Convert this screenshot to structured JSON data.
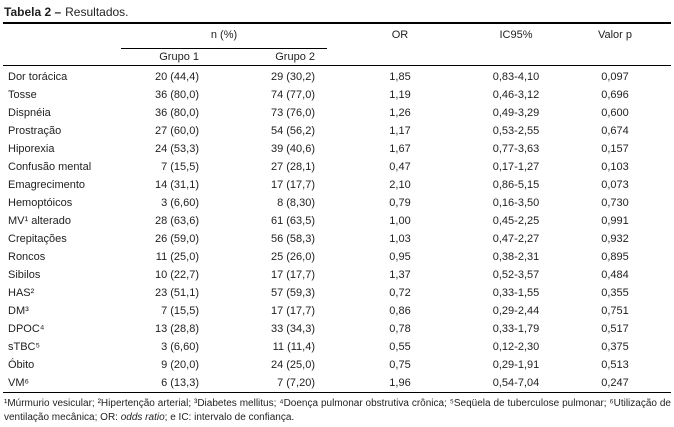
{
  "colors": {
    "background": "#ffffff",
    "text": "#1f1f1f",
    "rule": "#000000"
  },
  "title": {
    "bold": "Tabela 2 –",
    "rest": "Resultados."
  },
  "table": {
    "header": {
      "n_pct": "n (%)",
      "grupo1": "Grupo 1",
      "grupo2": "Grupo 2",
      "or": "OR",
      "ic95": "IC95%",
      "valor_p": "Valor p"
    },
    "rows": [
      {
        "label": "Dor torácica",
        "g1": "20 (44,4)",
        "g2": "29 (30,2)",
        "or": "1,85",
        "ic": "0,83-4,10",
        "p": "0,097"
      },
      {
        "label": "Tosse",
        "g1": "36 (80,0)",
        "g2": "74 (77,0)",
        "or": "1,19",
        "ic": "0,46-3,12",
        "p": "0,696"
      },
      {
        "label": "Dispnéia",
        "g1": "36 (80,0)",
        "g2": "73 (76,0)",
        "or": "1,26",
        "ic": "0,49-3,29",
        "p": "0,600"
      },
      {
        "label": "Prostração",
        "g1": "27 (60,0)",
        "g2": "54 (56,2)",
        "or": "1,17",
        "ic": "0,53-2,55",
        "p": "0,674"
      },
      {
        "label": "Hiporexia",
        "g1": "24 (53,3)",
        "g2": "39 (40,6)",
        "or": "1,67",
        "ic": "0,77-3,63",
        "p": "0,157"
      },
      {
        "label": "Confusão mental",
        "g1": "7 (15,5)",
        "g2": "27 (28,1)",
        "or": "0,47",
        "ic": "0,17-1,27",
        "p": "0,103"
      },
      {
        "label": "Emagrecimento",
        "g1": "14 (31,1)",
        "g2": "17 (17,7)",
        "or": "2,10",
        "ic": "0,86-5,15",
        "p": "0,073"
      },
      {
        "label": "Hemoptóicos",
        "g1": "3 (6,60)",
        "g2": "8 (8,30)",
        "or": "0,79",
        "ic": "0,16-3,50",
        "p": "0,730"
      },
      {
        "label": "MV¹ alterado",
        "g1": "28 (63,6)",
        "g2": "61 (63,5)",
        "or": "1,00",
        "ic": "0,45-2,25",
        "p": "0,991"
      },
      {
        "label": "Crepitações",
        "g1": "26 (59,0)",
        "g2": "56 (58,3)",
        "or": "1,03",
        "ic": "0,47-2,27",
        "p": "0,932"
      },
      {
        "label": "Roncos",
        "g1": "11 (25,0)",
        "g2": "25 (26,0)",
        "or": "0,95",
        "ic": "0,38-2,31",
        "p": "0,895"
      },
      {
        "label": "Sibilos",
        "g1": "10 (22,7)",
        "g2": "17 (17,7)",
        "or": "1,37",
        "ic": "0,52-3,57",
        "p": "0,484"
      },
      {
        "label": "HAS²",
        "g1": "23 (51,1)",
        "g2": "57 (59,3)",
        "or": "0,72",
        "ic": "0,33-1,55",
        "p": "0,355"
      },
      {
        "label": "DM³",
        "g1": "7 (15,5)",
        "g2": "17 (17,7)",
        "or": "0,86",
        "ic": "0,29-2,44",
        "p": "0,751"
      },
      {
        "label": "DPOC⁴",
        "g1": "13 (28,8)",
        "g2": "33 (34,3)",
        "or": "0,78",
        "ic": "0,33-1,79",
        "p": "0,517"
      },
      {
        "label": "sTBC⁵",
        "g1": "3 (6,60)",
        "g2": "11 (11,4)",
        "or": "0,55",
        "ic": "0,12-2,30",
        "p": "0,375"
      },
      {
        "label": "Óbito",
        "g1": "9 (20,0)",
        "g2": "24 (25,0)",
        "or": "0,75",
        "ic": "0,29-1,91",
        "p": "0,513"
      },
      {
        "label": "VM⁶",
        "g1": "6 (13,3)",
        "g2": "7 (7,20)",
        "or": "1,96",
        "ic": "0,54-7,04",
        "p": "0,247"
      }
    ]
  },
  "footnote": {
    "part1": "¹Múrmurio vesicular; ²Hipertenção arterial; ³Diabetes mellitus; ⁴Doença pulmonar obstrutiva crônica; ⁵Seqüela de tuberculose pulmonar; ⁶Utilização de ventilação mecânica; OR: ",
    "italic": "odds ratio",
    "part2": "; e IC: intervalo de confiança."
  }
}
